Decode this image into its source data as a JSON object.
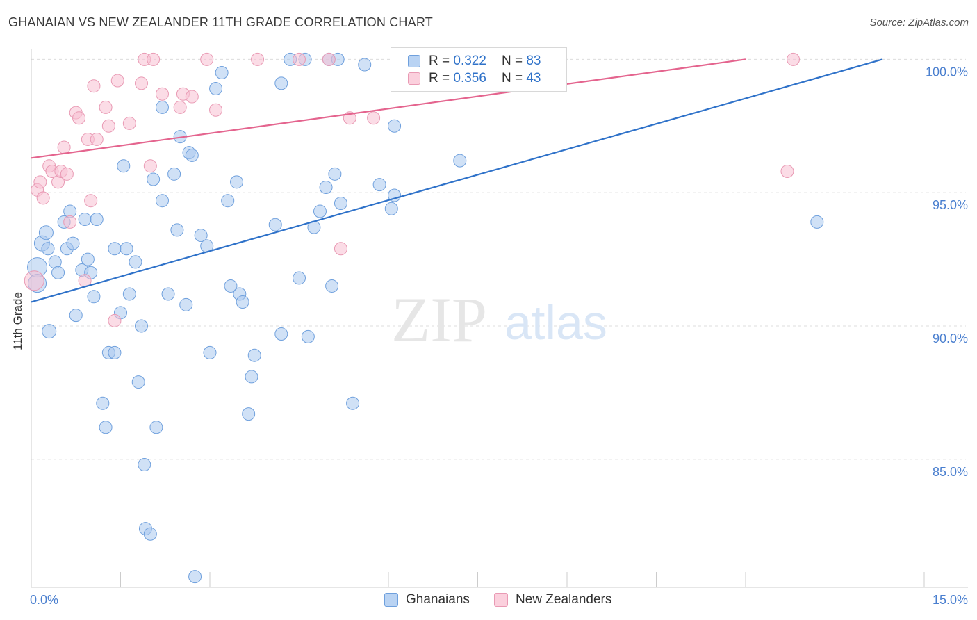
{
  "header": {
    "title": "GHANAIAN VS NEW ZEALANDER 11TH GRADE CORRELATION CHART",
    "source": "Source: ZipAtlas.com"
  },
  "watermark": {
    "zip": "ZIP",
    "atlas": "atlas"
  },
  "legend": {
    "rows": [
      {
        "r_label": "R =",
        "r_value": "0.322",
        "n_label": "N =",
        "n_value": "83",
        "color": "#a9c8ef"
      },
      {
        "r_label": "R =",
        "r_value": "0.356",
        "n_label": "N =",
        "n_value": "43",
        "color": "#f7b8cb"
      }
    ]
  },
  "colors": {
    "blue_fill": "#a9c8ef",
    "blue_stroke": "#6fa0dd",
    "blue_line": "#2f72c9",
    "pink_fill": "#f7c0d2",
    "pink_stroke": "#e99ab4",
    "pink_line": "#e4648e",
    "tick_label": "#4a7fcf",
    "grid": "#dcdcdc"
  },
  "chart_data": {
    "type": "scatter",
    "title": "GHANAIAN VS NEW ZEALANDER 11TH GRADE CORRELATION CHART",
    "xlabel": "",
    "ylabel": "11th Grade",
    "xlim": [
      0,
      15
    ],
    "ylim": [
      80.2,
      100.4
    ],
    "x_tick_labels": [
      "0.0%",
      "15.0%"
    ],
    "y_ticks": [
      85,
      90,
      95,
      100
    ],
    "y_tick_labels": [
      "85.0%",
      "90.0%",
      "95.0%",
      "100.0%"
    ],
    "grid": true,
    "series": [
      {
        "name": "Ghanaians",
        "color": "#a9c8ef",
        "trend": {
          "x": [
            0,
            14.3
          ],
          "y": [
            90.9,
            100.0
          ]
        },
        "points": [
          [
            0.1,
            92.2,
            14
          ],
          [
            0.1,
            91.6,
            13
          ],
          [
            0.18,
            93.1,
            11
          ],
          [
            0.25,
            93.5,
            10
          ],
          [
            0.3,
            89.8,
            10
          ],
          [
            0.28,
            92.9,
            9
          ],
          [
            0.4,
            92.4,
            9
          ],
          [
            0.45,
            92.0,
            9
          ],
          [
            0.55,
            93.9,
            9
          ],
          [
            0.6,
            92.9,
            9
          ],
          [
            0.65,
            94.3,
            9
          ],
          [
            0.7,
            93.1,
            9
          ],
          [
            0.75,
            90.4,
            9
          ],
          [
            0.85,
            92.1,
            9
          ],
          [
            0.9,
            94.0,
            9
          ],
          [
            0.95,
            92.5,
            9
          ],
          [
            1.0,
            92.0,
            9
          ],
          [
            1.05,
            91.1,
            9
          ],
          [
            1.1,
            94.0,
            9
          ],
          [
            1.2,
            87.1,
            9
          ],
          [
            1.25,
            86.2,
            9
          ],
          [
            1.3,
            89.0,
            9
          ],
          [
            1.4,
            89.0,
            9
          ],
          [
            1.4,
            92.9,
            9
          ],
          [
            1.5,
            90.5,
            9
          ],
          [
            1.55,
            96.0,
            9
          ],
          [
            1.6,
            92.9,
            9
          ],
          [
            1.65,
            91.2,
            9
          ],
          [
            1.75,
            92.4,
            9
          ],
          [
            1.8,
            87.9,
            9
          ],
          [
            1.85,
            90.0,
            9
          ],
          [
            1.9,
            84.8,
            9
          ],
          [
            1.92,
            82.4,
            9
          ],
          [
            2.0,
            82.2,
            9
          ],
          [
            2.05,
            95.5,
            9
          ],
          [
            2.1,
            86.2,
            9
          ],
          [
            2.2,
            94.7,
            9
          ],
          [
            2.2,
            98.2,
            9
          ],
          [
            2.3,
            91.2,
            9
          ],
          [
            2.4,
            95.7,
            9
          ],
          [
            2.45,
            93.6,
            9
          ],
          [
            2.5,
            97.1,
            9
          ],
          [
            2.6,
            90.8,
            9
          ],
          [
            2.65,
            96.5,
            9
          ],
          [
            2.7,
            96.4,
            9
          ],
          [
            2.75,
            80.6,
            9
          ],
          [
            2.85,
            93.4,
            9
          ],
          [
            2.95,
            93.0,
            9
          ],
          [
            3.0,
            89.0,
            9
          ],
          [
            3.1,
            98.9,
            9
          ],
          [
            3.2,
            99.5,
            9
          ],
          [
            3.3,
            94.7,
            9
          ],
          [
            3.35,
            91.5,
            9
          ],
          [
            3.45,
            95.4,
            9
          ],
          [
            3.5,
            91.2,
            9
          ],
          [
            3.55,
            90.9,
            9
          ],
          [
            3.65,
            86.7,
            9
          ],
          [
            3.7,
            88.1,
            9
          ],
          [
            3.75,
            88.9,
            9
          ],
          [
            4.1,
            93.8,
            9
          ],
          [
            4.2,
            89.7,
            9
          ],
          [
            4.2,
            99.1,
            9
          ],
          [
            4.35,
            100.0,
            9
          ],
          [
            4.5,
            91.8,
            9
          ],
          [
            4.6,
            100.0,
            9
          ],
          [
            4.65,
            89.6,
            9
          ],
          [
            4.75,
            93.7,
            9
          ],
          [
            4.85,
            94.3,
            9
          ],
          [
            4.95,
            95.2,
            9
          ],
          [
            5.0,
            100.0,
            9
          ],
          [
            5.05,
            91.5,
            9
          ],
          [
            5.1,
            95.7,
            9
          ],
          [
            5.15,
            100.0,
            9
          ],
          [
            5.2,
            94.6,
            9
          ],
          [
            5.4,
            87.1,
            9
          ],
          [
            5.6,
            99.8,
            9
          ],
          [
            5.85,
            95.3,
            9
          ],
          [
            6.05,
            94.4,
            9
          ],
          [
            6.1,
            97.5,
            9
          ],
          [
            6.1,
            94.9,
            9
          ],
          [
            7.2,
            96.2,
            9
          ],
          [
            13.2,
            93.9,
            9
          ]
        ]
      },
      {
        "name": "New Zealanders",
        "color": "#f7b8cb",
        "trend": {
          "x": [
            0,
            12.0
          ],
          "y": [
            96.3,
            100.0
          ]
        },
        "points": [
          [
            0.05,
            91.7,
            14
          ],
          [
            0.1,
            95.1,
            9
          ],
          [
            0.15,
            95.4,
            9
          ],
          [
            0.2,
            94.8,
            9
          ],
          [
            0.3,
            96.0,
            9
          ],
          [
            0.35,
            95.8,
            9
          ],
          [
            0.45,
            95.4,
            9
          ],
          [
            0.5,
            95.8,
            9
          ],
          [
            0.55,
            96.7,
            9
          ],
          [
            0.6,
            95.7,
            9
          ],
          [
            0.65,
            93.9,
            9
          ],
          [
            0.75,
            98.0,
            9
          ],
          [
            0.8,
            97.8,
            9
          ],
          [
            0.9,
            91.7,
            9
          ],
          [
            0.95,
            97.0,
            9
          ],
          [
            1.0,
            94.7,
            9
          ],
          [
            1.05,
            99.0,
            9
          ],
          [
            1.1,
            97.0,
            9
          ],
          [
            1.25,
            98.2,
            9
          ],
          [
            1.3,
            97.5,
            9
          ],
          [
            1.4,
            90.2,
            9
          ],
          [
            1.45,
            99.2,
            9
          ],
          [
            1.65,
            97.6,
            9
          ],
          [
            1.85,
            99.1,
            9
          ],
          [
            1.9,
            100.0,
            9
          ],
          [
            2.0,
            96.0,
            9
          ],
          [
            2.05,
            100.0,
            9
          ],
          [
            2.2,
            98.7,
            9
          ],
          [
            2.5,
            98.2,
            9
          ],
          [
            2.55,
            98.7,
            9
          ],
          [
            2.7,
            98.6,
            9
          ],
          [
            2.95,
            100.0,
            9
          ],
          [
            3.1,
            98.1,
            9
          ],
          [
            3.8,
            100.0,
            9
          ],
          [
            4.5,
            100.0,
            9
          ],
          [
            5.0,
            100.0,
            9
          ],
          [
            5.2,
            92.9,
            9
          ],
          [
            5.35,
            97.8,
            9
          ],
          [
            5.75,
            97.8,
            9
          ],
          [
            6.9,
            100.0,
            9
          ],
          [
            7.0,
            100.0,
            9
          ],
          [
            12.7,
            95.8,
            9
          ],
          [
            12.8,
            100.0,
            9
          ]
        ]
      }
    ]
  },
  "bottom_legend": {
    "items": [
      "Ghanaians",
      "New Zealanders"
    ]
  }
}
